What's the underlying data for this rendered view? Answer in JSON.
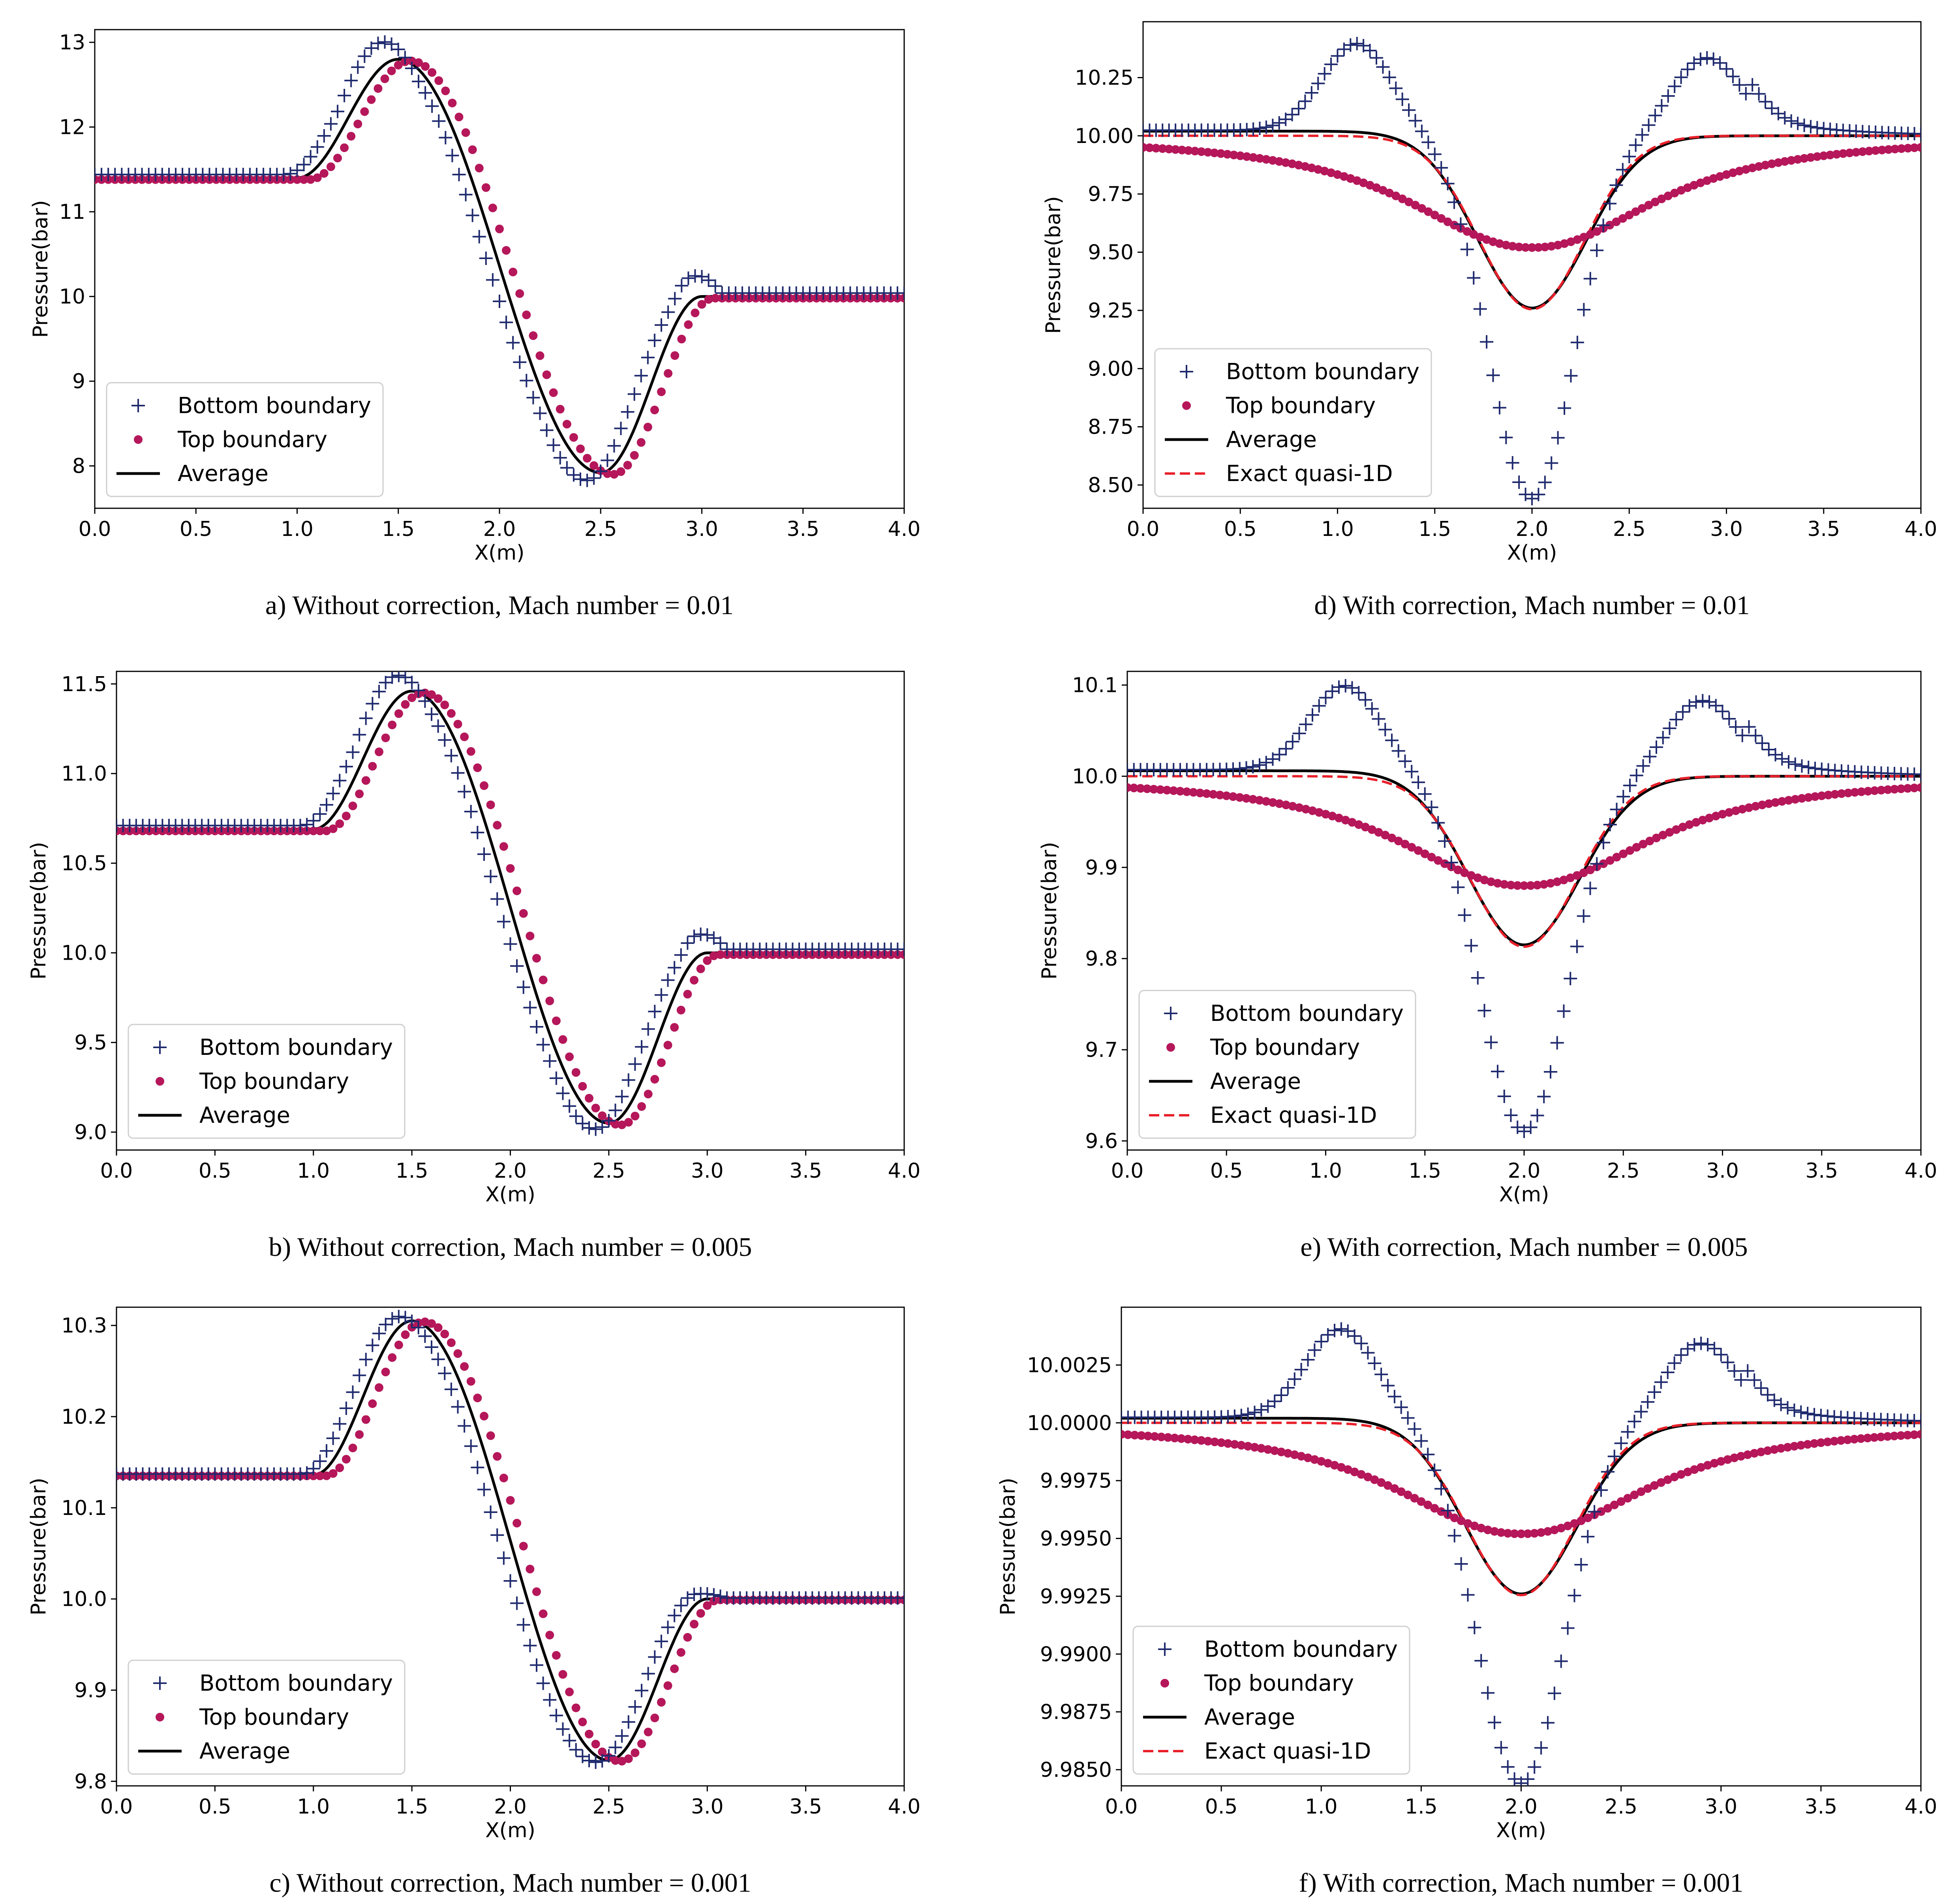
{
  "colors": {
    "bottom": "#1f2a6e",
    "top": "#b5175a",
    "average": "#000000",
    "exact": "#e8202a"
  },
  "chart_data": [
    {
      "type": "line",
      "caption": "a) Without correction, Mach number = 0.01",
      "xlabel": "X(m)",
      "ylabel": "Pressure(bar)",
      "xlim": [
        0,
        4
      ],
      "ylim": [
        7.5,
        13.15
      ],
      "xticks": [
        0,
        0.5,
        1,
        1.5,
        2,
        2.5,
        3,
        3.5,
        4
      ],
      "xtick_labels": [
        "0.0",
        "0.5",
        "1.0",
        "1.5",
        "2.0",
        "2.5",
        "3.0",
        "3.5",
        "4.0"
      ],
      "yticks": [
        8,
        9,
        10,
        11,
        12,
        13
      ],
      "ytick_labels": [
        "8",
        "9",
        "10",
        "11",
        "12",
        "13"
      ],
      "legend": [
        "Bottom boundary",
        "Top boundary",
        "Average"
      ],
      "legend_loc": "lower-left",
      "kind": "nozzle",
      "params": {
        "inlet": 11.4,
        "outlet": 10.0,
        "peak": 12.8,
        "trough": 7.92,
        "sb": 0.17,
        "st": -0.06,
        "ob": 0.04,
        "ot": -0.02
      }
    },
    {
      "type": "line",
      "caption": "d) With correction, Mach number = 0.01",
      "xlabel": "X(m)",
      "ylabel": "Pressure(bar)",
      "xlim": [
        0,
        4
      ],
      "ylim": [
        8.4,
        10.49
      ],
      "xticks": [
        0,
        0.5,
        1,
        1.5,
        2,
        2.5,
        3,
        3.5,
        4
      ],
      "xtick_labels": [
        "0.0",
        "0.5",
        "1.0",
        "1.5",
        "2.0",
        "2.5",
        "3.0",
        "3.5",
        "4.0"
      ],
      "yticks": [
        8.5,
        8.75,
        9.0,
        9.25,
        9.5,
        9.75,
        10.0,
        10.25
      ],
      "ytick_labels": [
        "8.50",
        "8.75",
        "9.00",
        "9.25",
        "9.50",
        "9.75",
        "10.00",
        "10.25"
      ],
      "legend": [
        "Bottom boundary",
        "Top boundary",
        "Average",
        "Exact quasi-1D"
      ],
      "legend_loc": "lower-left",
      "kind": "corrected",
      "params": {
        "ref": 10.0,
        "ampBot": 0.38,
        "troughBot": 8.44,
        "troughTop": 9.52,
        "troughAvg": 9.26,
        "troughEx": 9.255,
        "offBot": 0.03,
        "offAvg": 0.02
      }
    },
    {
      "type": "line",
      "caption": "b) Without correction, Mach number = 0.005",
      "xlabel": "X(m)",
      "ylabel": "Pressure(bar)",
      "xlim": [
        0,
        4
      ],
      "ylim": [
        8.9,
        11.57
      ],
      "xticks": [
        0,
        0.5,
        1,
        1.5,
        2,
        2.5,
        3,
        3.5,
        4
      ],
      "xtick_labels": [
        "0.0",
        "0.5",
        "1.0",
        "1.5",
        "2.0",
        "2.5",
        "3.0",
        "3.5",
        "4.0"
      ],
      "yticks": [
        9.0,
        9.5,
        10.0,
        10.5,
        11.0,
        11.5
      ],
      "ytick_labels": [
        "9.0",
        "9.5",
        "10.0",
        "10.5",
        "11.0",
        "11.5"
      ],
      "legend": [
        "Bottom boundary",
        "Top boundary",
        "Average"
      ],
      "legend_loc": "lower-left",
      "kind": "nozzle",
      "params": {
        "inlet": 10.69,
        "outlet": 10.0,
        "peak": 11.46,
        "trough": 9.05,
        "sb": 0.07,
        "st": -0.02,
        "ob": 0.02,
        "ot": -0.01
      }
    },
    {
      "type": "line",
      "caption": "e) With correction, Mach number = 0.005",
      "xlabel": "X(m)",
      "ylabel": "Pressure(bar)",
      "xlim": [
        0,
        4
      ],
      "ylim": [
        9.59,
        10.115
      ],
      "xticks": [
        0,
        0.5,
        1,
        1.5,
        2,
        2.5,
        3,
        3.5,
        4
      ],
      "xtick_labels": [
        "0.0",
        "0.5",
        "1.0",
        "1.5",
        "2.0",
        "2.5",
        "3.0",
        "3.5",
        "4.0"
      ],
      "yticks": [
        9.6,
        9.7,
        9.8,
        9.9,
        10.0,
        10.1
      ],
      "ytick_labels": [
        "9.6",
        "9.7",
        "9.8",
        "9.9",
        "10.0",
        "10.1"
      ],
      "legend": [
        "Bottom boundary",
        "Top boundary",
        "Average",
        "Exact quasi-1D"
      ],
      "legend_loc": "lower-left",
      "kind": "corrected",
      "params": {
        "ref": 10.0,
        "ampBot": 0.094,
        "troughBot": 9.61,
        "troughTop": 9.88,
        "troughAvg": 9.815,
        "troughEx": 9.813,
        "offBot": 0.009,
        "offAvg": 0.006
      }
    },
    {
      "type": "line",
      "caption": "c) Without correction, Mach number = 0.001",
      "xlabel": "X(m)",
      "ylabel": "Pressure(bar)",
      "xlim": [
        0,
        4
      ],
      "ylim": [
        9.795,
        10.32
      ],
      "xticks": [
        0,
        0.5,
        1,
        1.5,
        2,
        2.5,
        3,
        3.5,
        4
      ],
      "xtick_labels": [
        "0.0",
        "0.5",
        "1.0",
        "1.5",
        "2.0",
        "2.5",
        "3.0",
        "3.5",
        "4.0"
      ],
      "yticks": [
        9.8,
        9.9,
        10.0,
        10.1,
        10.2,
        10.3
      ],
      "ytick_labels": [
        "9.8",
        "9.9",
        "10.0",
        "10.1",
        "10.2",
        "10.3"
      ],
      "legend": [
        "Bottom boundary",
        "Top boundary",
        "Average"
      ],
      "legend_loc": "lower-left",
      "kind": "nozzle",
      "params": {
        "inlet": 10.136,
        "outlet": 10.0,
        "peak": 10.305,
        "trough": 9.823,
        "sb": 0.004,
        "st": -0.002,
        "ob": 0.001,
        "ot": -0.001
      }
    },
    {
      "type": "line",
      "caption": "f) With correction, Mach number = 0.001",
      "xlabel": "X(m)",
      "ylabel": "Pressure(bar)",
      "xlim": [
        0,
        4
      ],
      "ylim": [
        9.9843,
        10.005
      ],
      "xticks": [
        0,
        0.5,
        1,
        1.5,
        2,
        2.5,
        3,
        3.5,
        4
      ],
      "xtick_labels": [
        "0.0",
        "0.5",
        "1.0",
        "1.5",
        "2.0",
        "2.5",
        "3.0",
        "3.5",
        "4.0"
      ],
      "yticks": [
        9.985,
        9.9875,
        9.99,
        9.9925,
        9.995,
        9.9975,
        10.0,
        10.0025
      ],
      "ytick_labels": [
        "9.9850",
        "9.9875",
        "9.9900",
        "9.9925",
        "9.9950",
        "9.9975",
        "10.0000",
        "10.0025"
      ],
      "legend": [
        "Bottom boundary",
        "Top boundary",
        "Average",
        "Exact quasi-1D"
      ],
      "legend_loc": "lower-left",
      "kind": "corrected",
      "params": {
        "ref": 10.0,
        "ampBot": 0.0039,
        "troughBot": 9.9844,
        "troughTop": 9.9952,
        "troughAvg": 9.9926,
        "troughEx": 9.99255,
        "offBot": 0.0003,
        "offAvg": 0.0002
      }
    }
  ]
}
